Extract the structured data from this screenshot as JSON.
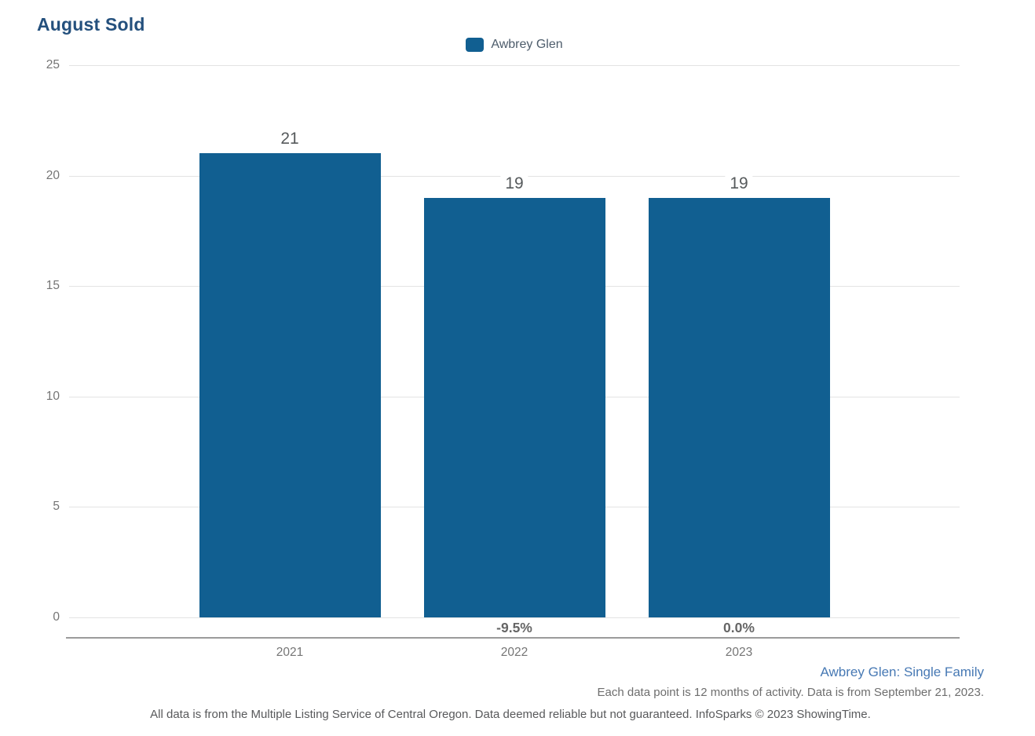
{
  "title": "August Sold",
  "legend": {
    "label": "Awbrey Glen"
  },
  "footer": {
    "series_link": "Awbrey Glen: Single Family",
    "data_note": "Each data point is 12 months of activity. Data is from September 21, 2023.",
    "disclaimer": "All data is from the Multiple Listing Service of Central Oregon. Data deemed reliable but not guaranteed. InfoSparks © 2023 ShowingTime."
  },
  "colors": {
    "bar": "#115f91",
    "title_text": "#24507d",
    "legend_text": "#4d5c6b",
    "link_text": "#4779b4",
    "axis_text": "#757575",
    "value_text": "#565a5c",
    "grid": "#e3e3e3",
    "axis_line": "#9b9b9b"
  },
  "chart_data": {
    "type": "bar",
    "title": "August Sold",
    "categories": [
      "2021",
      "2022",
      "2023"
    ],
    "series": [
      {
        "name": "Awbrey Glen",
        "values": [
          21,
          19,
          19
        ]
      }
    ],
    "value_labels": [
      "21",
      "19",
      "19"
    ],
    "change_labels": [
      "",
      "-9.5%",
      "0.0%"
    ],
    "yticks": [
      0,
      5,
      10,
      15,
      20,
      25
    ],
    "ylim": [
      0,
      25
    ],
    "xlabel": "",
    "ylabel": "",
    "grid": true,
    "legend_position": "top-center"
  }
}
